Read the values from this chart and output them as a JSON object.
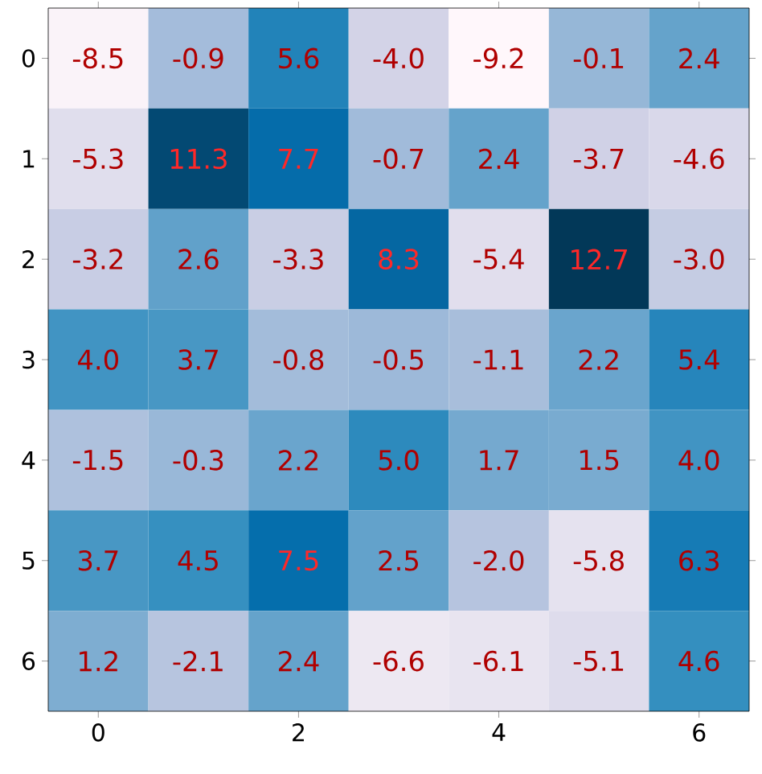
{
  "chart_data": {
    "type": "heatmap",
    "categories": [
      "0",
      null,
      "2",
      null,
      "4",
      null,
      "6"
    ],
    "y_categories": [
      "0",
      "1",
      "2",
      "3",
      "4",
      "5",
      "6"
    ],
    "cells": [
      [
        -8.5,
        -0.9,
        5.6,
        -4.0,
        -9.2,
        -0.1,
        2.4
      ],
      [
        -5.3,
        11.3,
        7.7,
        -0.7,
        2.4,
        -3.7,
        -4.6
      ],
      [
        -3.2,
        2.6,
        -3.3,
        8.3,
        -5.4,
        12.7,
        -3.0
      ],
      [
        4.0,
        3.7,
        -0.8,
        -0.5,
        -1.1,
        2.2,
        5.4
      ],
      [
        -1.5,
        -0.3,
        2.2,
        5.0,
        1.7,
        1.5,
        4.0
      ],
      [
        3.7,
        4.5,
        7.5,
        2.5,
        -2.0,
        -5.8,
        6.3
      ],
      [
        1.2,
        -2.1,
        2.4,
        -6.6,
        -6.1,
        -5.1,
        4.6
      ]
    ],
    "cell_labels": [
      [
        "-8.5",
        "-0.9",
        "5.6",
        "-4.0",
        "-9.2",
        "-0.1",
        "2.4"
      ],
      [
        "-5.3",
        "11.3",
        "7.7",
        "-0.7",
        "2.4",
        "-3.7",
        "-4.6"
      ],
      [
        "-3.2",
        "2.6",
        "-3.3",
        "8.3",
        "-5.4",
        "12.7",
        "-3.0"
      ],
      [
        "4.0",
        "3.7",
        "-0.8",
        "-0.5",
        "-1.1",
        "2.2",
        "5.4"
      ],
      [
        "-1.5",
        "-0.3",
        "2.2",
        "5.0",
        "1.7",
        "1.5",
        "4.0"
      ],
      [
        "3.7",
        "4.5",
        "7.5",
        "2.5",
        "-2.0",
        "-5.8",
        "6.3"
      ],
      [
        "1.2",
        "-2.1",
        "2.4",
        "-6.6",
        "-6.1",
        "-5.1",
        "4.6"
      ]
    ]
  }
}
